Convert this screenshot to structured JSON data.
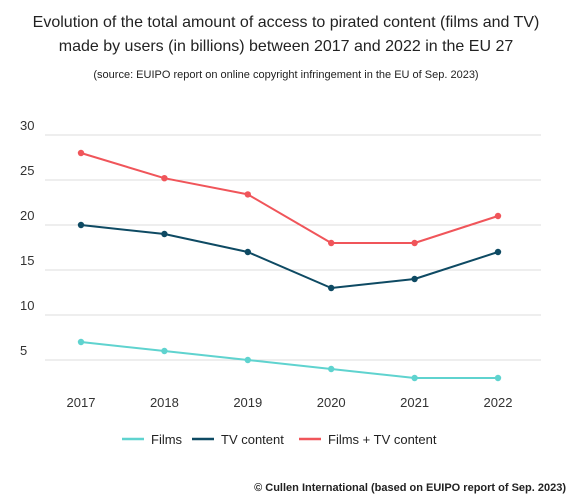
{
  "chart_data": {
    "type": "line",
    "title_lines": [
      "Evolution of the total amount of access to pirated content (films and TV)",
      "made by users (in billions) between 2017 and 2022 in the EU 27"
    ],
    "subtitle": "(source: EUIPO report on online copyright infringement in the EU of Sep. 2023)",
    "categories": [
      "2017",
      "2018",
      "2019",
      "2020",
      "2021",
      "2022"
    ],
    "y_ticks": [
      5,
      10,
      15,
      20,
      25,
      30
    ],
    "ylim": [
      0,
      30
    ],
    "grid": true,
    "legend_position": "bottom",
    "series": [
      {
        "name": "Films",
        "color": "#5fd3cf",
        "values": [
          7,
          6,
          5,
          4,
          3,
          3
        ]
      },
      {
        "name": "TV content",
        "color": "#0e4a63",
        "values": [
          20,
          19,
          17,
          13,
          14,
          17
        ]
      },
      {
        "name": "Films + TV content",
        "color": "#f0555a",
        "values": [
          28,
          25.2,
          23.4,
          18,
          18,
          21
        ]
      }
    ],
    "footer": "© Cullen International (based on EUIPO report of Sep. 2023)"
  }
}
